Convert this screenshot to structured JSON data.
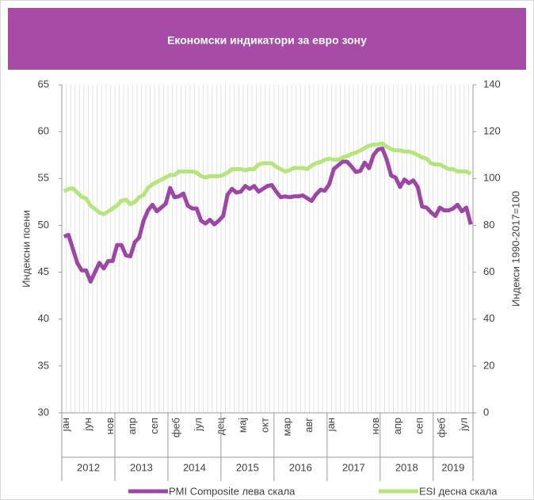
{
  "chart_data": {
    "type": "line",
    "title": "Економски индикатори за евро зону",
    "y_label": "Индексни поени",
    "y2_label": "Индекси 1990-2017=100",
    "categories": [
      "јан",
      null,
      null,
      null,
      null,
      "јун",
      null,
      null,
      null,
      null,
      "нов",
      null,
      null,
      null,
      null,
      "апр",
      null,
      null,
      null,
      null,
      "сеп",
      null,
      null,
      null,
      null,
      "феб",
      null,
      null,
      null,
      null,
      "јул",
      null,
      null,
      null,
      null,
      "дец",
      null,
      null,
      null,
      null,
      "мај",
      null,
      null,
      null,
      null,
      "окт",
      null,
      null,
      null,
      null,
      "мар",
      null,
      null,
      null,
      null,
      "авг",
      null,
      null,
      null,
      null,
      "јан",
      null,
      null,
      null,
      null,
      null,
      null,
      null,
      null,
      null,
      "нов",
      null,
      null,
      null,
      null,
      "апр",
      null,
      null,
      null,
      null,
      "сеп",
      null,
      null,
      null,
      null,
      "феб",
      null,
      null,
      null,
      null,
      "јул",
      null,
      null
    ],
    "year_groups": [
      {
        "label": "2012",
        "span": 12
      },
      {
        "label": "2013",
        "span": 12
      },
      {
        "label": "2014",
        "span": 12
      },
      {
        "label": "2015",
        "span": 12
      },
      {
        "label": "2016",
        "span": 12
      },
      {
        "label": "2017",
        "span": 12
      },
      {
        "label": "2018",
        "span": 12
      },
      {
        "label": "2019",
        "span": 9
      }
    ],
    "ylim": [
      30,
      65
    ],
    "yticks": [
      30,
      35,
      40,
      45,
      50,
      55,
      60,
      65
    ],
    "y2lim": [
      0,
      140
    ],
    "y2ticks": [
      0,
      20,
      40,
      60,
      80,
      100,
      120,
      140
    ],
    "series": [
      {
        "name": "PMI Composite лева скала",
        "color": "#9e45a8",
        "values": [
          48.8,
          49,
          47.5,
          46,
          45.2,
          45.2,
          44,
          45,
          46,
          45.4,
          46.2,
          46.2,
          47.9,
          47.9,
          46.8,
          46.7,
          48.2,
          48.7,
          50.5,
          51.6,
          52.2,
          51.5,
          51.9,
          52.3,
          54,
          53,
          53.1,
          53.4,
          52.1,
          51.8,
          51.8,
          50.5,
          50.2,
          50.6,
          50.1,
          50.5,
          51,
          53.3,
          53.9,
          53.5,
          53.6,
          54.2,
          53.9,
          54.2,
          53.6,
          53.9,
          54.2,
          54.3,
          53.6,
          53,
          53.1,
          53,
          53.1,
          53.1,
          53.2,
          52.9,
          52.6,
          53.3,
          53.8,
          53.7,
          54.4,
          56,
          56.4,
          56.8,
          56.8,
          56.3,
          55.7,
          55.8,
          56.7,
          56.1,
          57.5,
          58.1,
          58.2,
          57,
          55.3,
          55.1,
          54.1,
          54.9,
          54.5,
          54.8,
          54.1,
          52,
          51.9,
          51.4,
          51,
          51.9,
          51.6,
          51.6,
          51.8,
          52.2,
          51.5,
          51.9,
          50.1
        ]
      },
      {
        "name": "ESI десна скала",
        "color": "#b5e67d",
        "axis": "y2",
        "values": [
          94.5,
          95.5,
          95.8,
          94,
          92.2,
          91.5,
          88.5,
          87,
          85.5,
          84.8,
          86,
          87.2,
          88.5,
          90.5,
          91,
          89,
          90,
          92,
          93,
          96,
          97.5,
          98.5,
          99.5,
          100.5,
          101.5,
          101.5,
          103,
          103,
          103,
          103,
          102.5,
          101,
          100.5,
          101,
          101,
          101,
          101.5,
          102.5,
          104,
          104,
          104,
          103.5,
          104,
          104,
          106,
          106.5,
          106.5,
          106.5,
          105,
          104,
          103,
          103.5,
          104.5,
          104.5,
          104.5,
          104,
          105.5,
          106.5,
          107,
          108,
          108.5,
          108,
          108,
          109,
          109.5,
          110.5,
          111,
          112,
          113,
          114,
          114.5,
          114.5,
          115,
          113.5,
          112.5,
          112,
          112,
          111.5,
          111.5,
          111,
          110,
          109,
          108.5,
          106.5,
          106,
          106,
          105,
          104,
          104,
          103,
          103,
          103,
          102
        ]
      }
    ]
  }
}
